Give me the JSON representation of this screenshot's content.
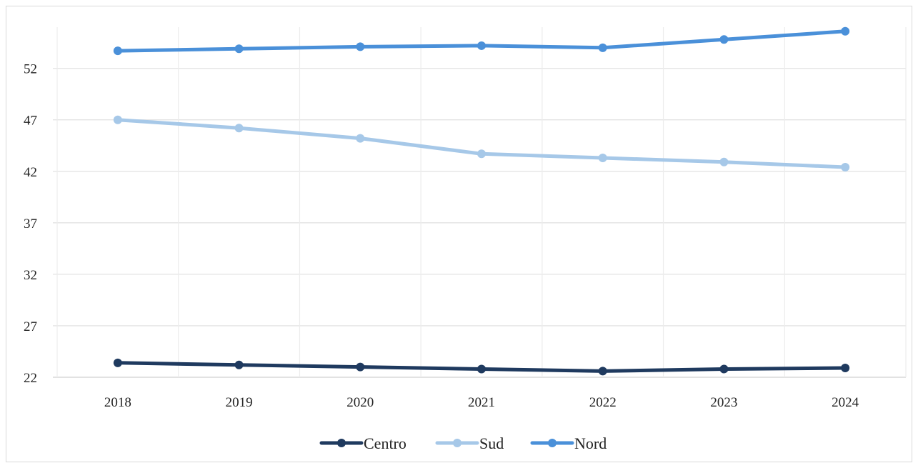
{
  "chart_data": {
    "type": "line",
    "x": [
      "2018",
      "2019",
      "2020",
      "2021",
      "2022",
      "2023",
      "2024"
    ],
    "y_ticks": [
      22,
      27,
      32,
      37,
      42,
      47,
      52
    ],
    "ylim": [
      22,
      56
    ],
    "grid": true,
    "legend_position": "bottom",
    "series": [
      {
        "name": "Centro",
        "color": "#1f3a5f",
        "values": [
          23.4,
          23.2,
          23.0,
          22.8,
          22.6,
          22.8,
          22.9
        ]
      },
      {
        "name": "Sud",
        "color": "#a6c8e8",
        "values": [
          47.0,
          46.2,
          45.2,
          43.7,
          43.3,
          42.9,
          42.4
        ]
      },
      {
        "name": "Nord",
        "color": "#4a90d9",
        "values": [
          53.7,
          53.9,
          54.1,
          54.2,
          54.0,
          54.8,
          55.6
        ]
      }
    ]
  }
}
